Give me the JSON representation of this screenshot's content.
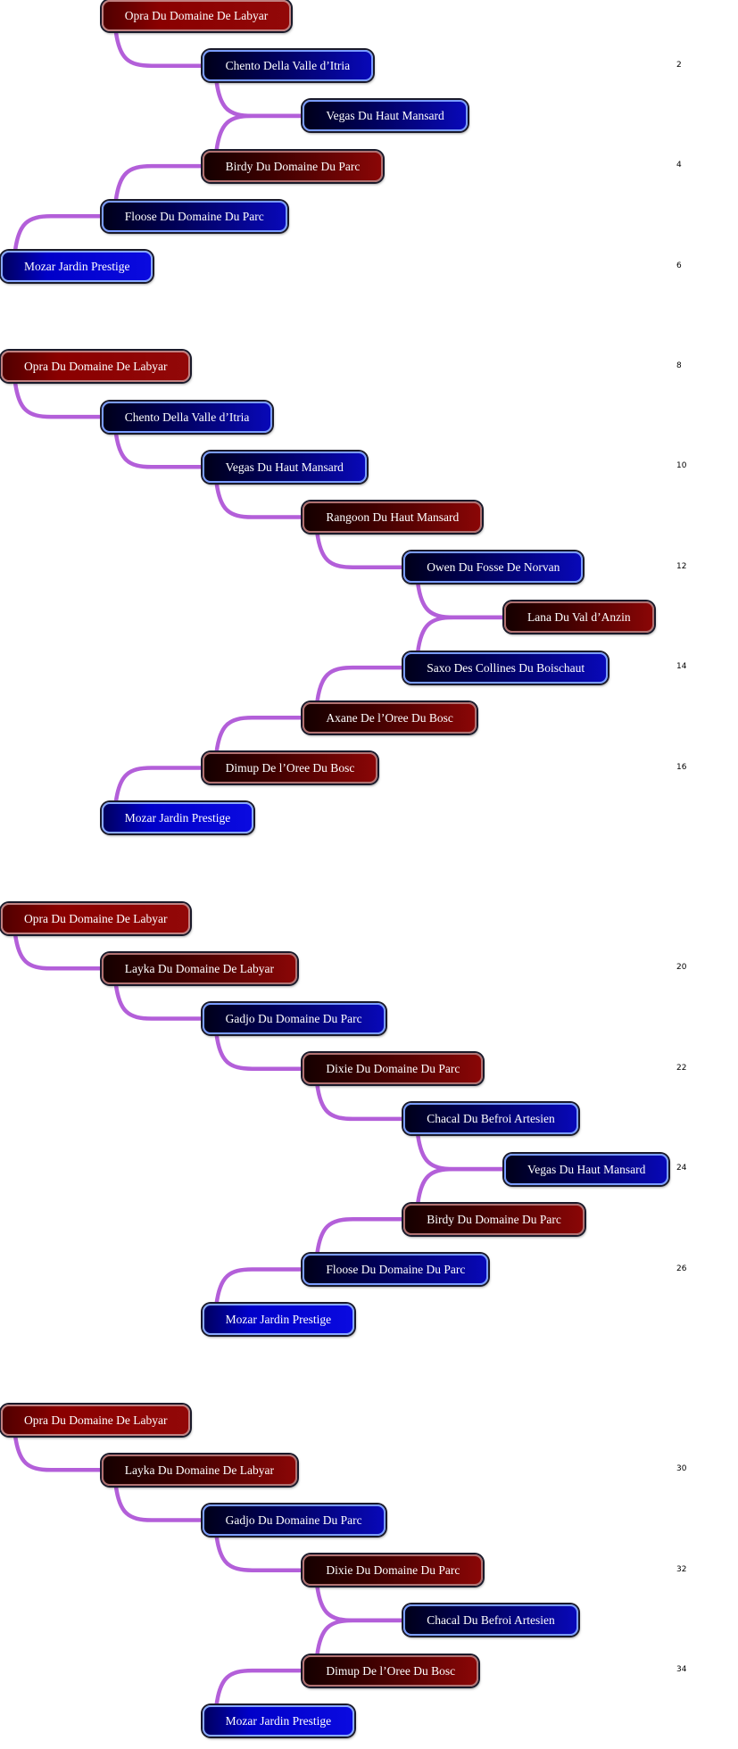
{
  "colors": {
    "link": "#b35fd9",
    "red": "#8a0606",
    "blue": "#0808b8"
  },
  "groups": [
    {
      "rows": [
        {
          "label": "Opra Du Domaine De Labyar",
          "level": 1,
          "color": "bright-red"
        },
        {
          "label": "Chento Della Valle d’Itria",
          "level": 2,
          "color": "blue",
          "num": "2"
        },
        {
          "label": "Vegas Du Haut Mansard",
          "level": 3,
          "color": "blue"
        },
        {
          "label": "Birdy Du Domaine Du Parc",
          "level": 2,
          "color": "red",
          "num": "4"
        },
        {
          "label": "Floose Du Domaine Du Parc",
          "level": 1,
          "color": "blue"
        },
        {
          "label": "Mozar Jardin Prestige",
          "level": 0,
          "color": "bright-blue",
          "num": "6"
        }
      ]
    },
    {
      "rows": [
        {
          "label": "Opra Du Domaine De Labyar",
          "level": 0,
          "color": "bright-red",
          "num": "8"
        },
        {
          "label": "Chento Della Valle d’Itria",
          "level": 1,
          "color": "blue"
        },
        {
          "label": "Vegas Du Haut Mansard",
          "level": 2,
          "color": "blue",
          "num": "10"
        },
        {
          "label": "Rangoon Du Haut Mansard",
          "level": 3,
          "color": "red"
        },
        {
          "label": "Owen Du Fosse De Norvan",
          "level": 4,
          "color": "blue",
          "num": "12"
        },
        {
          "label": "Lana Du Val d’Anzin",
          "level": 5,
          "color": "red"
        },
        {
          "label": "Saxo Des Collines Du Boischaut",
          "level": 4,
          "color": "blue",
          "num": "14"
        },
        {
          "label": "Axane De l’Oree Du Bosc",
          "level": 3,
          "color": "red"
        },
        {
          "label": "Dimup De l’Oree Du Bosc",
          "level": 2,
          "color": "red",
          "num": "16"
        },
        {
          "label": "Mozar Jardin Prestige",
          "level": 1,
          "color": "bright-blue"
        }
      ]
    },
    {
      "rows": [
        {
          "label": "Opra Du Domaine De Labyar",
          "level": 0,
          "color": "bright-red"
        },
        {
          "label": "Layka Du Domaine De Labyar",
          "level": 1,
          "color": "red",
          "num": "20"
        },
        {
          "label": "Gadjo Du Domaine Du Parc",
          "level": 2,
          "color": "blue"
        },
        {
          "label": "Dixie Du Domaine Du Parc",
          "level": 3,
          "color": "red",
          "num": "22"
        },
        {
          "label": "Chacal Du Befroi Artesien",
          "level": 4,
          "color": "blue"
        },
        {
          "label": "Vegas Du Haut Mansard",
          "level": 5,
          "color": "blue",
          "num": "24"
        },
        {
          "label": "Birdy Du Domaine Du Parc",
          "level": 4,
          "color": "red"
        },
        {
          "label": "Floose Du Domaine Du Parc",
          "level": 3,
          "color": "blue",
          "num": "26"
        },
        {
          "label": "Mozar Jardin Prestige",
          "level": 2,
          "color": "bright-blue"
        }
      ]
    },
    {
      "rows": [
        {
          "label": "Opra Du Domaine De Labyar",
          "level": 0,
          "color": "bright-red"
        },
        {
          "label": "Layka Du Domaine De Labyar",
          "level": 1,
          "color": "red",
          "num": "30"
        },
        {
          "label": "Gadjo Du Domaine Du Parc",
          "level": 2,
          "color": "blue"
        },
        {
          "label": "Dixie Du Domaine Du Parc",
          "level": 3,
          "color": "red",
          "num": "32"
        },
        {
          "label": "Chacal Du Befroi Artesien",
          "level": 4,
          "color": "blue"
        },
        {
          "label": "Dimup De l’Oree Du Bosc",
          "level": 3,
          "color": "red",
          "num": "34"
        },
        {
          "label": "Mozar Jardin Prestige",
          "level": 2,
          "color": "bright-blue"
        }
      ]
    }
  ]
}
